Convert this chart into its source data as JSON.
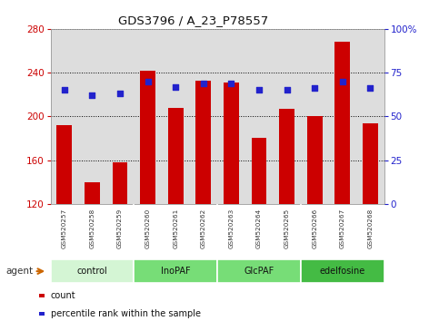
{
  "title": "GDS3796 / A_23_P78557",
  "samples": [
    "GSM520257",
    "GSM520258",
    "GSM520259",
    "GSM520260",
    "GSM520261",
    "GSM520262",
    "GSM520263",
    "GSM520264",
    "GSM520265",
    "GSM520266",
    "GSM520267",
    "GSM520268"
  ],
  "counts": [
    192,
    140,
    158,
    242,
    208,
    233,
    231,
    180,
    207,
    200,
    268,
    194
  ],
  "percentiles": [
    65,
    62,
    63,
    70,
    67,
    69,
    69,
    65,
    65,
    66,
    70,
    66
  ],
  "ymin": 120,
  "ymax": 280,
  "yticks": [
    120,
    160,
    200,
    240,
    280
  ],
  "y2min": 0,
  "y2max": 100,
  "y2ticks": [
    0,
    25,
    50,
    75,
    100
  ],
  "y2ticklabels": [
    "0",
    "25",
    "50",
    "75",
    "100%"
  ],
  "groups": [
    {
      "label": "control",
      "start": 0,
      "end": 3,
      "color": "#d4f5d4"
    },
    {
      "label": "InoPAF",
      "start": 3,
      "end": 6,
      "color": "#77dd77"
    },
    {
      "label": "GlcPAF",
      "start": 6,
      "end": 9,
      "color": "#77dd77"
    },
    {
      "label": "edelfosine",
      "start": 9,
      "end": 12,
      "color": "#44bb44"
    }
  ],
  "bar_color": "#cc0000",
  "dot_color": "#2222cc",
  "bar_width": 0.55,
  "grid_linestyle": "dotted",
  "tick_color_left": "#cc0000",
  "tick_color_right": "#2222cc",
  "bg_color": "#ffffff",
  "plot_bg_color": "#dddddd",
  "xtick_bg_color": "#cccccc",
  "agent_label": "agent",
  "legend_count": "count",
  "legend_pct": "percentile rank within the sample"
}
